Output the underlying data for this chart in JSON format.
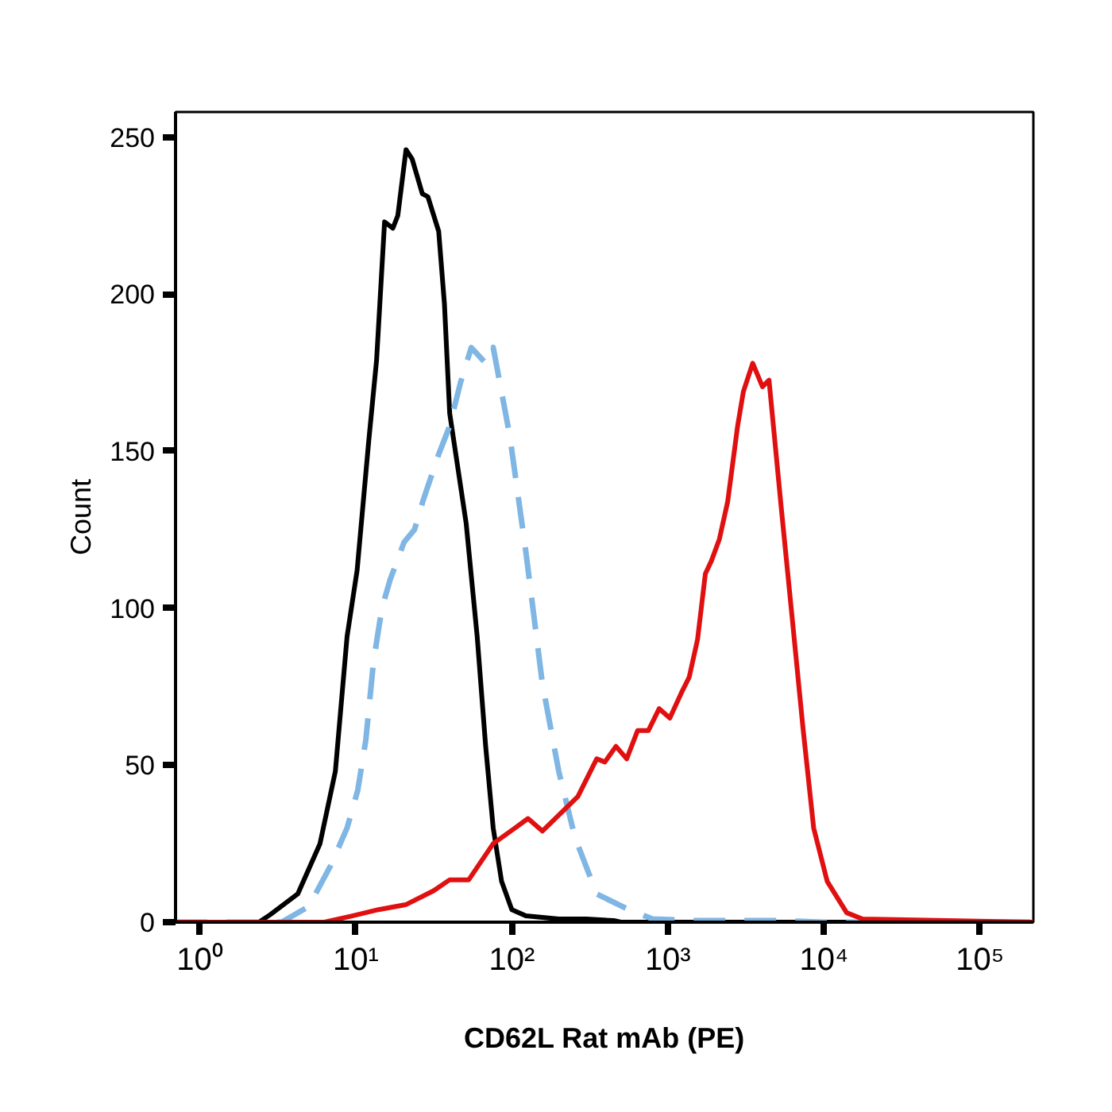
{
  "chart_data": {
    "type": "line",
    "xlabel": "CD62L Rat mAb (PE)",
    "ylabel": "Count",
    "log": "x",
    "grid": false,
    "marker": "none",
    "xlim": [
      0.7,
      220000
    ],
    "ylim": [
      0,
      258
    ],
    "xticks": [
      {
        "value": 1,
        "label": "10⁰"
      },
      {
        "value": 10,
        "label": "10¹"
      },
      {
        "value": 100,
        "label": "10²"
      },
      {
        "value": 1000,
        "label": "10³"
      },
      {
        "value": 10000,
        "label": "10⁴"
      },
      {
        "value": 100000,
        "label": "10⁵"
      }
    ],
    "yticks": [
      0,
      50,
      100,
      150,
      200,
      250
    ],
    "series": [
      {
        "color": "#000000",
        "line_style": "solid",
        "x": [
          0.7,
          2.4,
          2.85,
          4.25,
          5.9,
          7.4,
          8.8,
          10.2,
          12.1,
          13.6,
          15.3,
          17.3,
          18.6,
          21,
          23,
          26.7,
          29,
          34,
          37,
          40,
          51,
          60,
          68,
          76,
          86,
          100,
          123,
          200,
          300,
          450,
          500,
          220000
        ],
        "values": [
          0,
          0,
          2.5,
          9,
          25,
          48,
          91,
          112,
          153,
          179,
          223,
          221,
          225,
          246,
          243,
          232,
          231,
          220,
          197,
          162,
          127,
          91,
          56,
          30,
          13,
          4,
          2,
          1,
          1,
          0.5,
          0,
          0
        ]
      },
      {
        "color": "#7fb6e4",
        "line_style": "dashed",
        "x": [
          0.7,
          3.35,
          5,
          6.9,
          8.8,
          10.3,
          11.6,
          13,
          14.7,
          16.6,
          20.4,
          23.8,
          26.9,
          34,
          40,
          47,
          55,
          68,
          76,
          97,
          123,
          157,
          200,
          254,
          350,
          560,
          800,
          1500,
          5000,
          10000,
          220000
        ],
        "values": [
          0,
          0,
          5,
          18,
          30,
          42,
          58,
          83,
          100,
          109,
          121,
          125,
          134,
          149,
          158,
          172,
          183,
          178,
          183,
          155,
          118,
          76,
          48,
          27,
          9,
          4,
          1,
          0.5,
          0.5,
          0,
          0
        ]
      },
      {
        "color": "#e01010",
        "line_style": "solid",
        "x": [
          0.7,
          6.3,
          9.5,
          14,
          21,
          31.5,
          40,
          53,
          76,
          105,
          127,
          157,
          265,
          350,
          395,
          465,
          545,
          640,
          750,
          880,
          1030,
          1220,
          1370,
          1550,
          1740,
          1900,
          2140,
          2420,
          2800,
          3050,
          3500,
          4040,
          4450,
          5330,
          6260,
          7340,
          8600,
          10500,
          14000,
          17700,
          220000
        ],
        "values": [
          0,
          0,
          2,
          4,
          5.6,
          10,
          13.5,
          13.5,
          25,
          30,
          33,
          29,
          40,
          52,
          51,
          56,
          52,
          61,
          61,
          68,
          65,
          73,
          78,
          90,
          111,
          115,
          122,
          134,
          158,
          169,
          178,
          170.5,
          172.6,
          132,
          97,
          62,
          30,
          13,
          3,
          1,
          0
        ]
      }
    ]
  }
}
